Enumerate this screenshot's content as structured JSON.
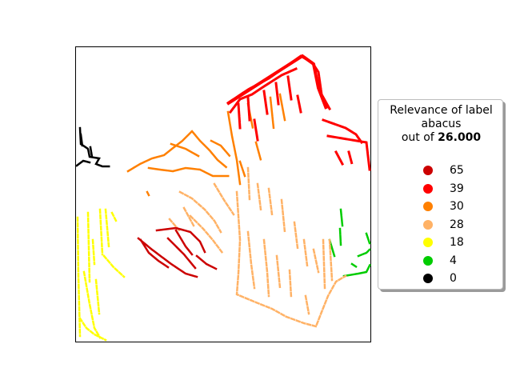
{
  "chart_data": {
    "type": "scatter",
    "xlabel": "",
    "ylabel": "",
    "grid": false,
    "legend_placement": "right",
    "legend": {
      "title_line1": "Relevance of label",
      "title_line2": "abacus",
      "title_prefix": "out of ",
      "title_value": "26.000"
    },
    "series": [
      {
        "label": "65",
        "color": "#cc0000",
        "region": "lower-left diagonal edges"
      },
      {
        "label": "39",
        "color": "#ff0000",
        "region": "upper roofline"
      },
      {
        "label": "30",
        "color": "#ff8000",
        "region": "upper facade and left slope"
      },
      {
        "label": "28",
        "color": "#ffb266",
        "region": "central building body"
      },
      {
        "label": "18",
        "color": "#ffff00",
        "region": "far-left columns"
      },
      {
        "label": "4",
        "color": "#00cc00",
        "region": "right edge"
      },
      {
        "label": "0",
        "color": "#000000",
        "region": "far-left top"
      }
    ]
  }
}
